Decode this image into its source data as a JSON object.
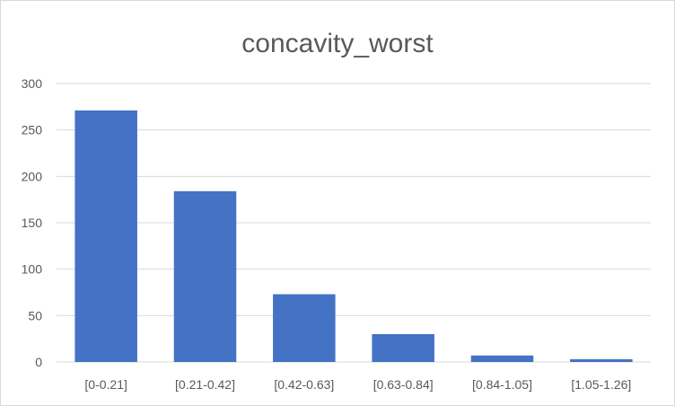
{
  "chart_data": {
    "type": "bar",
    "title": "concavity_worst",
    "xlabel": "",
    "ylabel": "",
    "categories": [
      "[0-0.21]",
      "[0.21-0.42]",
      "[0.42-0.63]",
      "[0.63-0.84]",
      "[0.84-1.05]",
      "[1.05-1.26]"
    ],
    "values": [
      271,
      184,
      73,
      30,
      7,
      3
    ],
    "ylim": [
      0,
      300
    ],
    "yticks": [
      0,
      50,
      100,
      150,
      200,
      250,
      300
    ],
    "grid": true,
    "legend": "none",
    "bar_color": "#4472C4"
  }
}
